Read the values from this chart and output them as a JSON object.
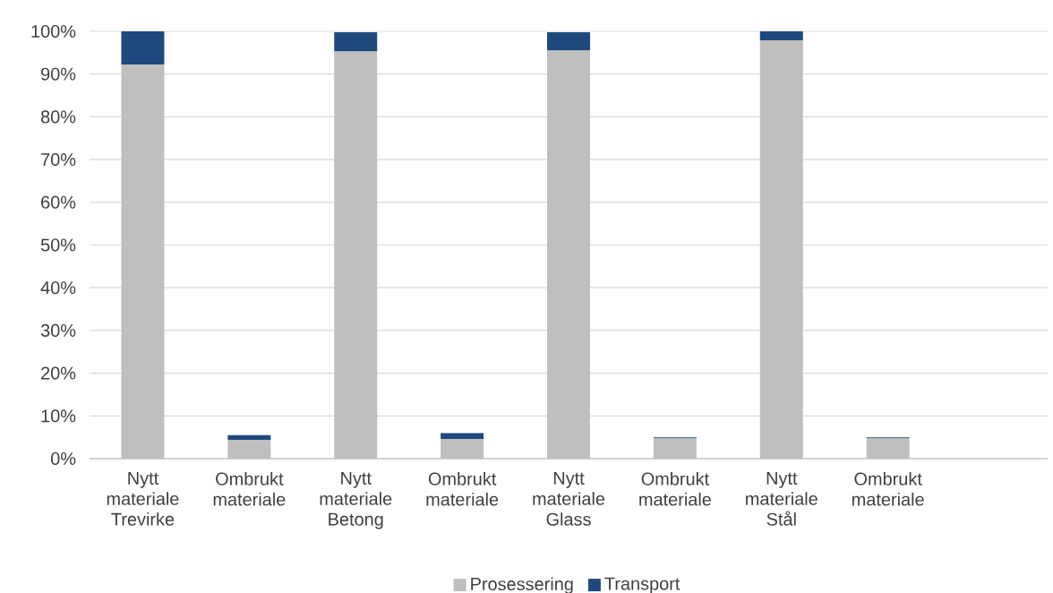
{
  "chart_data": {
    "type": "bar",
    "stacked": true,
    "categories": [
      "Nytt materiale Trevirke",
      "Ombrukt materiale",
      "Nytt materiale Betong",
      "Ombrukt materiale",
      "Nytt materiale Glass",
      "Ombrukt materiale",
      "Nytt materiale Stål",
      "Ombrukt materiale",
      null
    ],
    "series": [
      {
        "name": "Prosessering",
        "color": "#bfbfbf",
        "values": [
          92.2,
          4.4,
          95.3,
          4.6,
          95.5,
          4.7,
          97.9,
          4.7,
          null
        ]
      },
      {
        "name": "Transport",
        "color": "#1f497d",
        "values": [
          7.8,
          1.1,
          4.5,
          1.4,
          4.3,
          0.3,
          2.1,
          0.3,
          null
        ]
      }
    ],
    "ylim": [
      0,
      100
    ],
    "yticks": [
      {
        "value": 0,
        "label": "0%"
      },
      {
        "value": 10,
        "label": "10%"
      },
      {
        "value": 20,
        "label": "20%"
      },
      {
        "value": 30,
        "label": "30%"
      },
      {
        "value": 40,
        "label": "40%"
      },
      {
        "value": 50,
        "label": "50%"
      },
      {
        "value": 60,
        "label": "60%"
      },
      {
        "value": 70,
        "label": "70%"
      },
      {
        "value": 80,
        "label": "80%"
      },
      {
        "value": 90,
        "label": "90%"
      },
      {
        "value": 100,
        "label": "100%"
      }
    ],
    "grid": "y",
    "legend": "bottom"
  }
}
